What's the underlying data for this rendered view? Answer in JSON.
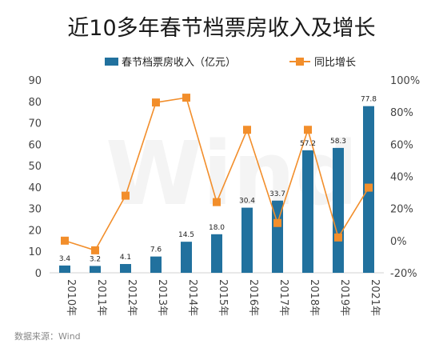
{
  "chart_data": {
    "type": "bar",
    "title": "近10多年春节档票房收入及增长",
    "categories": [
      "2010年",
      "2011年",
      "2012年",
      "2013年",
      "2014年",
      "2015年",
      "2016年",
      "2017年",
      "2018年",
      "2019年",
      "2021年"
    ],
    "series": [
      {
        "name": "春节档票房收入（亿元）",
        "type": "bar",
        "axis": "left",
        "values": [
          3.4,
          3.2,
          4.1,
          7.6,
          14.5,
          18.0,
          30.4,
          33.7,
          57.2,
          58.3,
          77.8
        ],
        "labels": [
          "3.4",
          "3.2",
          "4.1",
          "7.6",
          "14.5",
          "18.0",
          "30.4",
          "33.7",
          "57.2",
          "58.3",
          "77.8"
        ]
      },
      {
        "name": "同比增长",
        "type": "line",
        "axis": "right",
        "values": [
          0,
          -6,
          28,
          86,
          89,
          24,
          69,
          11,
          69,
          2,
          33
        ]
      }
    ],
    "y_left": {
      "min": 0,
      "max": 90,
      "step": 10,
      "ticks": [
        "0",
        "10",
        "20",
        "30",
        "40",
        "50",
        "60",
        "70",
        "80",
        "90"
      ]
    },
    "y_right": {
      "min": -20,
      "max": 100,
      "step": 20,
      "ticks": [
        "-20%",
        "0%",
        "20%",
        "40%",
        "60%",
        "80%",
        "100%"
      ]
    },
    "grid": false,
    "legend_position": "top",
    "colors": {
      "bar": "#21719e",
      "line": "#f28e2b",
      "marker": "#f28e2b"
    },
    "source": "数据来源：Wind",
    "watermark": "Wind"
  }
}
